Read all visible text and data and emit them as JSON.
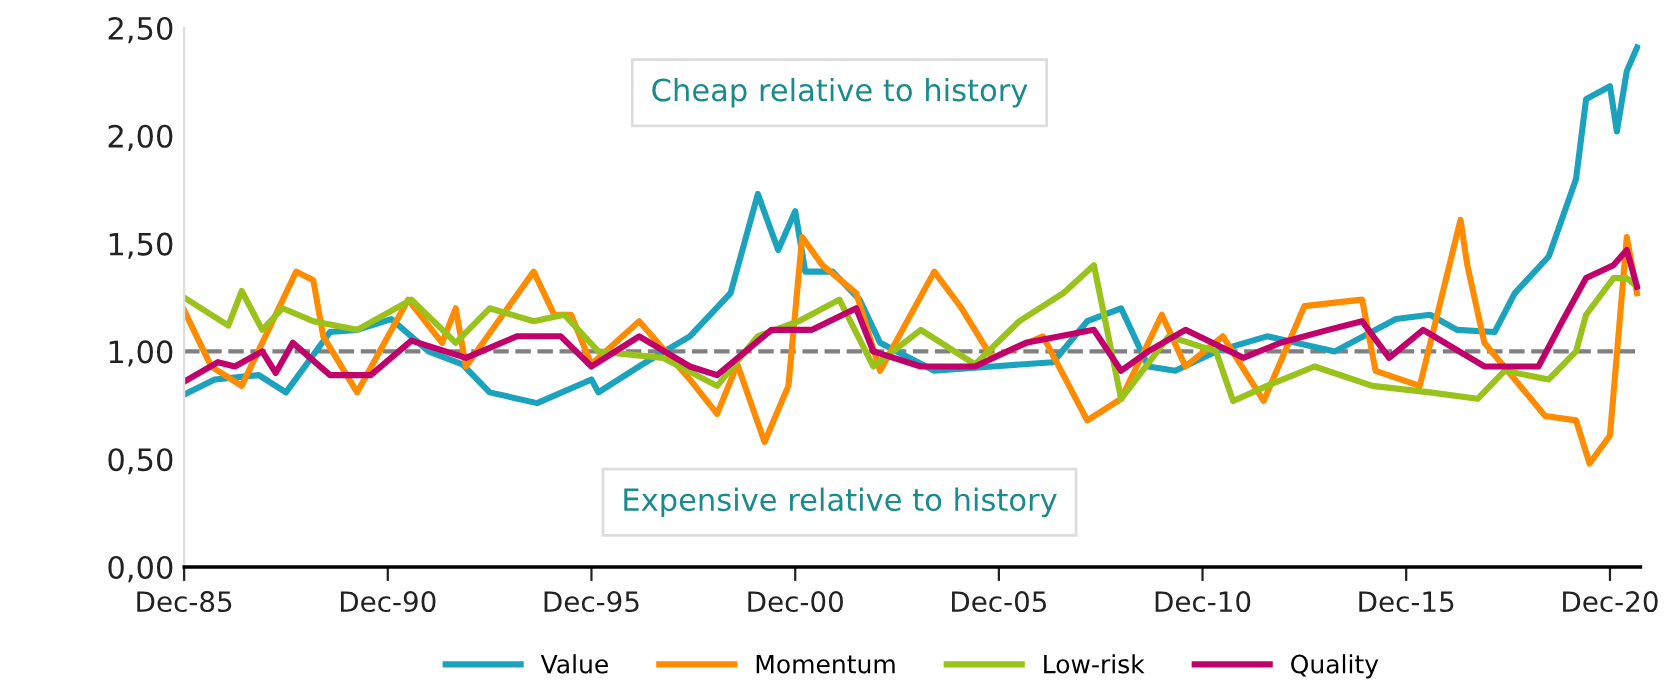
{
  "chart_data": {
    "type": "line",
    "xlim": [
      "1985-12",
      "2021-09"
    ],
    "xticks": [
      {
        "value": "1985-12",
        "label": "Dec-85"
      },
      {
        "value": "1990-12",
        "label": "Dec-90"
      },
      {
        "value": "1995-12",
        "label": "Dec-95"
      },
      {
        "value": "2000-12",
        "label": "Dec-00"
      },
      {
        "value": "2005-12",
        "label": "Dec-05"
      },
      {
        "value": "2010-12",
        "label": "Dec-10"
      },
      {
        "value": "2015-12",
        "label": "Dec-15"
      },
      {
        "value": "2020-12",
        "label": "Dec-20"
      }
    ],
    "ylim": [
      0,
      2.5
    ],
    "yticks": [
      {
        "value": 0,
        "label": "0,00"
      },
      {
        "value": 0.5,
        "label": "0,50"
      },
      {
        "value": 1,
        "label": "1,00"
      },
      {
        "value": 1.5,
        "label": "1,50"
      },
      {
        "value": 2,
        "label": "2,00"
      },
      {
        "value": 2.5,
        "label": "2,50"
      }
    ],
    "grid": false,
    "legend": "bottom",
    "line_style": "solid",
    "ref_lines": [
      {
        "axis": "y",
        "value": 1,
        "color": "#808080",
        "line_style": "dashed"
      }
    ],
    "annotations": [
      "Cheap relative to history",
      "Expensive relative to history"
    ],
    "series": [
      {
        "name": "Value",
        "color": "#1ba3be",
        "x": [
          "1985-12",
          "1986-09",
          "1987-10",
          "1988-06",
          "1989-07",
          "1990-03",
          "1991-01",
          "1991-12",
          "1992-10",
          "1993-06",
          "1994-08",
          "1995-12",
          "1996-02",
          "1997-03",
          "1998-05",
          "1999-05",
          "2000-01",
          "2000-07",
          "2000-12",
          "2001-03",
          "2001-11",
          "2002-07",
          "2003-01",
          "2004-05",
          "2005-10",
          "2007-04",
          "2008-02",
          "2008-12",
          "2009-08",
          "2010-04",
          "2011-04",
          "2012-07",
          "2014-03",
          "2015-09",
          "2016-07",
          "2017-03",
          "2018-02",
          "2018-08",
          "2019-06",
          "2020-02",
          "2020-05",
          "2020-12",
          "2021-02",
          "2021-05",
          "2021-08"
        ],
        "values": [
          0.8,
          0.87,
          0.89,
          0.81,
          1.09,
          1.1,
          1.15,
          1.0,
          0.94,
          0.81,
          0.76,
          0.87,
          0.81,
          0.94,
          1.07,
          1.27,
          1.73,
          1.47,
          1.65,
          1.37,
          1.37,
          1.24,
          1.04,
          0.91,
          0.93,
          0.95,
          1.14,
          1.2,
          0.93,
          0.91,
          1.0,
          1.07,
          1.0,
          1.15,
          1.17,
          1.1,
          1.09,
          1.27,
          1.44,
          1.8,
          2.17,
          2.23,
          2.02,
          2.3,
          2.41
        ]
      },
      {
        "name": "Momentum",
        "color": "#ff8c00",
        "x": [
          "1985-12",
          "1986-08",
          "1987-05",
          "1988-09",
          "1989-02",
          "1989-05",
          "1990-03",
          "1991-06",
          "1992-04",
          "1992-08",
          "1992-11",
          "1994-07",
          "1995-01",
          "1995-06",
          "1995-12",
          "1997-02",
          "1998-05",
          "1999-01",
          "1999-07",
          "2000-03",
          "2000-10",
          "2001-02",
          "2001-08",
          "2002-06",
          "2003-01",
          "2004-05",
          "2005-01",
          "2005-10",
          "2007-01",
          "2008-02",
          "2008-12",
          "2009-12",
          "2010-07",
          "2011-06",
          "2012-06",
          "2013-06",
          "2014-11",
          "2015-03",
          "2016-04",
          "2017-04",
          "2017-06",
          "2017-11",
          "2018-08",
          "2019-05",
          "2020-02",
          "2020-06",
          "2020-12",
          "2021-05",
          "2021-08"
        ],
        "values": [
          1.19,
          0.93,
          0.84,
          1.37,
          1.33,
          1.07,
          0.81,
          1.24,
          1.04,
          1.2,
          0.93,
          1.37,
          1.17,
          1.17,
          0.94,
          1.14,
          0.87,
          0.71,
          0.94,
          0.58,
          0.84,
          1.53,
          1.4,
          1.27,
          0.91,
          1.37,
          1.2,
          0.97,
          1.07,
          0.68,
          0.78,
          1.17,
          0.93,
          1.07,
          0.77,
          1.21,
          1.24,
          0.91,
          0.84,
          1.61,
          1.4,
          1.04,
          0.87,
          0.7,
          0.68,
          0.48,
          0.61,
          1.53,
          1.27
        ]
      },
      {
        "name": "Low-risk",
        "color": "#99c21b",
        "x": [
          "1985-12",
          "1986-08",
          "1987-01",
          "1987-05",
          "1987-11",
          "1988-05",
          "1989-02",
          "1990-03",
          "1991-07",
          "1992-08",
          "1993-06",
          "1994-07",
          "1995-04",
          "1996-02",
          "1997-09",
          "1999-01",
          "2000-01",
          "2001-01",
          "2002-01",
          "2002-11",
          "2004-01",
          "2005-05",
          "2006-06",
          "2007-07",
          "2008-04",
          "2008-12",
          "2010-02",
          "2011-04",
          "2011-09",
          "2012-07",
          "2013-09",
          "2015-02",
          "2016-07",
          "2017-09",
          "2018-05",
          "2019-06",
          "2020-02",
          "2020-05",
          "2021-01",
          "2021-05",
          "2021-08"
        ],
        "values": [
          1.25,
          1.17,
          1.12,
          1.28,
          1.1,
          1.2,
          1.14,
          1.1,
          1.24,
          1.04,
          1.2,
          1.14,
          1.17,
          1.0,
          0.97,
          0.84,
          1.07,
          1.14,
          1.24,
          0.93,
          1.1,
          0.94,
          1.14,
          1.27,
          1.4,
          0.78,
          1.07,
          1.0,
          0.77,
          0.84,
          0.93,
          0.84,
          0.81,
          0.78,
          0.91,
          0.87,
          1.0,
          1.17,
          1.34,
          1.34,
          1.3
        ]
      },
      {
        "name": "Quality",
        "color": "#c0006b",
        "x": [
          "1985-12",
          "1986-10",
          "1987-03",
          "1987-11",
          "1988-03",
          "1988-08",
          "1989-07",
          "1990-07",
          "1991-07",
          "1992-11",
          "1994-02",
          "1995-03",
          "1995-12",
          "1996-02",
          "1997-02",
          "1998-05",
          "1999-01",
          "2000-05",
          "2001-05",
          "2002-06",
          "2002-11",
          "2004-01",
          "2005-05",
          "2006-08",
          "2008-04",
          "2008-12",
          "2009-08",
          "2010-07",
          "2011-12",
          "2012-11",
          "2014-01",
          "2014-11",
          "2015-07",
          "2016-05",
          "2017-11",
          "2019-03",
          "2019-10",
          "2020-05",
          "2021-01",
          "2021-05",
          "2021-08"
        ],
        "values": [
          0.86,
          0.95,
          0.93,
          1.0,
          0.9,
          1.04,
          0.89,
          0.89,
          1.05,
          0.97,
          1.07,
          1.07,
          0.93,
          0.95,
          1.07,
          0.93,
          0.89,
          1.1,
          1.1,
          1.2,
          1.0,
          0.93,
          0.93,
          1.04,
          1.1,
          0.91,
          1.0,
          1.1,
          0.97,
          1.04,
          1.1,
          1.14,
          0.97,
          1.1,
          0.93,
          0.93,
          1.14,
          1.34,
          1.4,
          1.47,
          1.3
        ]
      }
    ]
  }
}
